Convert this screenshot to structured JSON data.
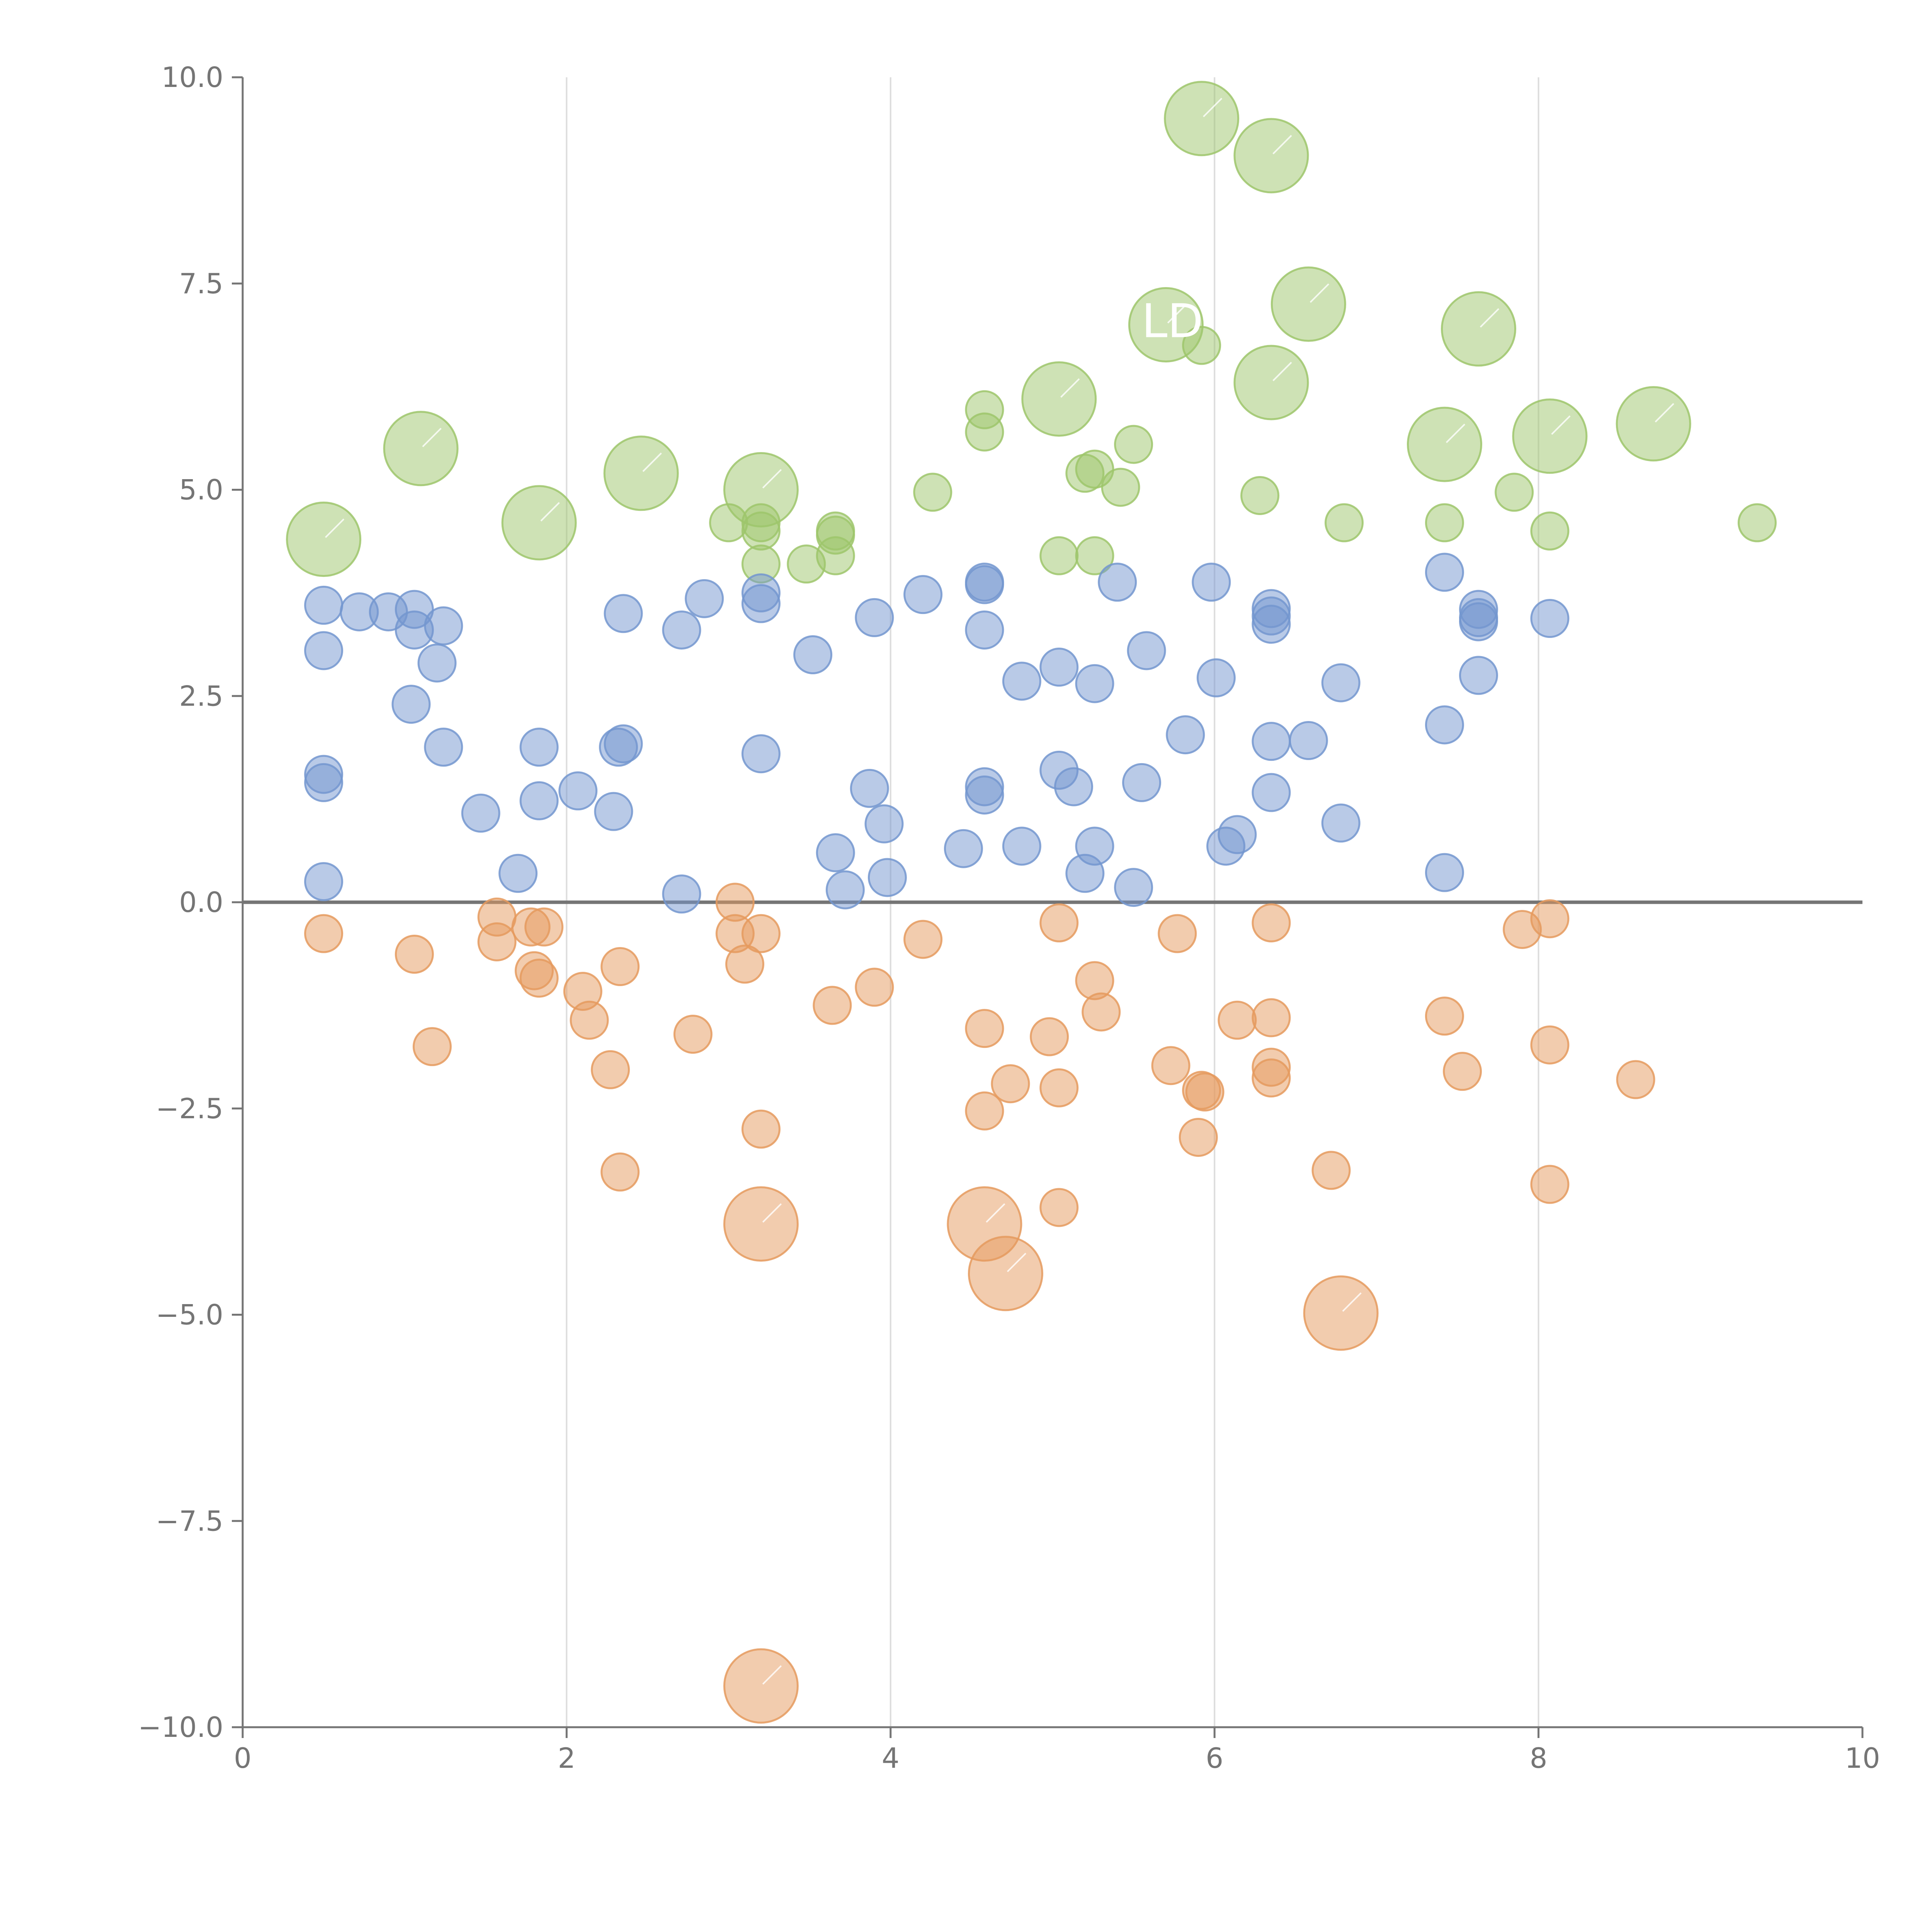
{
  "chart_data": {
    "type": "scatter",
    "title": "",
    "xlabel": "",
    "ylabel": "",
    "xlim": [
      0,
      10
    ],
    "ylim": [
      -10,
      10
    ],
    "x_ticks": [
      0,
      2,
      4,
      6,
      8,
      10
    ],
    "x_tick_labels": [
      "0",
      "2",
      "4",
      "6",
      "8",
      "10"
    ],
    "y_ticks": [
      10,
      7.5,
      5,
      2.5,
      0,
      -2.5,
      -5,
      -7.5,
      -10
    ],
    "y_tick_labels": [
      "10.0",
      "7.5",
      "5.0",
      "2.5",
      "0.0",
      "−2.5",
      "−5.0",
      "−7.5",
      "−10.0"
    ],
    "vertical_gridlines_at": [
      2,
      4,
      6,
      8
    ],
    "zero_line": true,
    "colors": {
      "green": "#9dc56b",
      "blue": "#7396cf",
      "orange": "#e59a5e",
      "axis": "#757575",
      "grid": "#dddddd",
      "zero_line": "#757575",
      "label": "#ffffff"
    },
    "series": [
      {
        "name": "green",
        "color": "#9dc56b",
        "points": [
          {
            "x": 0.5,
            "y": 4.4,
            "size": 3
          },
          {
            "x": 1.1,
            "y": 5.5,
            "size": 3
          },
          {
            "x": 1.83,
            "y": 4.6,
            "size": 3
          },
          {
            "x": 2.46,
            "y": 5.2,
            "size": 3
          },
          {
            "x": 3.2,
            "y": 5.0,
            "size": 3
          },
          {
            "x": 5.04,
            "y": 6.1,
            "size": 3
          },
          {
            "x": 5.7,
            "y": 7.0,
            "size": 3
          },
          {
            "x": 5.92,
            "y": 9.5,
            "size": 3
          },
          {
            "x": 6.35,
            "y": 9.05,
            "size": 3
          },
          {
            "x": 6.58,
            "y": 7.25,
            "size": 3
          },
          {
            "x": 6.35,
            "y": 6.3,
            "size": 3
          },
          {
            "x": 7.63,
            "y": 6.95,
            "size": 3
          },
          {
            "x": 7.42,
            "y": 5.55,
            "size": 3
          },
          {
            "x": 8.07,
            "y": 5.65,
            "size": 3
          },
          {
            "x": 8.71,
            "y": 5.8,
            "size": 3
          },
          {
            "x": 3.0,
            "y": 4.6,
            "size": 1
          },
          {
            "x": 3.2,
            "y": 4.6,
            "size": 1
          },
          {
            "x": 3.2,
            "y": 4.5,
            "size": 1
          },
          {
            "x": 3.2,
            "y": 4.1,
            "size": 1
          },
          {
            "x": 3.48,
            "y": 4.1,
            "size": 1
          },
          {
            "x": 3.66,
            "y": 4.5,
            "size": 1
          },
          {
            "x": 3.66,
            "y": 4.45,
            "size": 1
          },
          {
            "x": 3.66,
            "y": 4.2,
            "size": 1
          },
          {
            "x": 4.26,
            "y": 4.97,
            "size": 1
          },
          {
            "x": 4.58,
            "y": 5.97,
            "size": 1
          },
          {
            "x": 4.58,
            "y": 5.7,
            "size": 1
          },
          {
            "x": 5.04,
            "y": 4.2,
            "size": 1
          },
          {
            "x": 5.2,
            "y": 5.2,
            "size": 1
          },
          {
            "x": 5.26,
            "y": 5.25,
            "size": 1
          },
          {
            "x": 5.26,
            "y": 4.2,
            "size": 1
          },
          {
            "x": 5.42,
            "y": 5.03,
            "size": 1
          },
          {
            "x": 5.5,
            "y": 5.55,
            "size": 1
          },
          {
            "x": 5.92,
            "y": 6.75,
            "size": 1
          },
          {
            "x": 6.28,
            "y": 4.93,
            "size": 1
          },
          {
            "x": 6.8,
            "y": 4.6,
            "size": 1
          },
          {
            "x": 7.42,
            "y": 4.6,
            "size": 1
          },
          {
            "x": 7.85,
            "y": 4.97,
            "size": 1
          },
          {
            "x": 8.07,
            "y": 4.5,
            "size": 1
          },
          {
            "x": 9.35,
            "y": 4.6,
            "size": 1
          }
        ]
      },
      {
        "name": "blue",
        "color": "#7396cf",
        "points": [
          {
            "x": 0.5,
            "y": 3.6,
            "size": 1
          },
          {
            "x": 0.5,
            "y": 3.05,
            "size": 1
          },
          {
            "x": 0.5,
            "y": 1.55,
            "size": 1
          },
          {
            "x": 0.5,
            "y": 1.45,
            "size": 1
          },
          {
            "x": 0.5,
            "y": 0.25,
            "size": 1
          },
          {
            "x": 0.72,
            "y": 3.52,
            "size": 1
          },
          {
            "x": 0.9,
            "y": 3.52,
            "size": 1
          },
          {
            "x": 1.06,
            "y": 3.55,
            "size": 1
          },
          {
            "x": 1.06,
            "y": 3.3,
            "size": 1
          },
          {
            "x": 1.24,
            "y": 3.35,
            "size": 1
          },
          {
            "x": 1.2,
            "y": 2.9,
            "size": 1
          },
          {
            "x": 1.04,
            "y": 2.4,
            "size": 1
          },
          {
            "x": 1.24,
            "y": 1.88,
            "size": 1
          },
          {
            "x": 1.47,
            "y": 1.08,
            "size": 1
          },
          {
            "x": 1.7,
            "y": 0.35,
            "size": 1
          },
          {
            "x": 1.83,
            "y": 1.88,
            "size": 1
          },
          {
            "x": 1.83,
            "y": 1.23,
            "size": 1
          },
          {
            "x": 2.07,
            "y": 1.35,
            "size": 1
          },
          {
            "x": 2.29,
            "y": 1.1,
            "size": 1
          },
          {
            "x": 2.32,
            "y": 1.88,
            "size": 1
          },
          {
            "x": 2.35,
            "y": 1.92,
            "size": 1
          },
          {
            "x": 2.35,
            "y": 3.5,
            "size": 1
          },
          {
            "x": 2.71,
            "y": 3.3,
            "size": 1
          },
          {
            "x": 2.71,
            "y": 0.1,
            "size": 1
          },
          {
            "x": 2.85,
            "y": 3.68,
            "size": 1
          },
          {
            "x": 3.2,
            "y": 3.75,
            "size": 1
          },
          {
            "x": 3.2,
            "y": 3.62,
            "size": 1
          },
          {
            "x": 3.2,
            "y": 1.8,
            "size": 1
          },
          {
            "x": 3.52,
            "y": 3.0,
            "size": 1
          },
          {
            "x": 3.66,
            "y": 0.6,
            "size": 1
          },
          {
            "x": 3.72,
            "y": 0.15,
            "size": 1
          },
          {
            "x": 3.87,
            "y": 1.38,
            "size": 1
          },
          {
            "x": 3.9,
            "y": 3.45,
            "size": 1
          },
          {
            "x": 3.96,
            "y": 0.95,
            "size": 1
          },
          {
            "x": 3.98,
            "y": 0.3,
            "size": 1
          },
          {
            "x": 4.2,
            "y": 3.73,
            "size": 1
          },
          {
            "x": 4.45,
            "y": 0.65,
            "size": 1
          },
          {
            "x": 4.58,
            "y": 3.88,
            "size": 1
          },
          {
            "x": 4.58,
            "y": 3.85,
            "size": 1
          },
          {
            "x": 4.58,
            "y": 3.3,
            "size": 1
          },
          {
            "x": 4.58,
            "y": 1.4,
            "size": 1
          },
          {
            "x": 4.58,
            "y": 1.3,
            "size": 1
          },
          {
            "x": 4.81,
            "y": 2.68,
            "size": 1
          },
          {
            "x": 4.81,
            "y": 0.68,
            "size": 1
          },
          {
            "x": 5.04,
            "y": 2.85,
            "size": 1
          },
          {
            "x": 5.04,
            "y": 1.6,
            "size": 1
          },
          {
            "x": 5.13,
            "y": 1.4,
            "size": 1
          },
          {
            "x": 5.2,
            "y": 0.35,
            "size": 1
          },
          {
            "x": 5.26,
            "y": 2.65,
            "size": 1
          },
          {
            "x": 5.26,
            "y": 0.68,
            "size": 1
          },
          {
            "x": 5.4,
            "y": 3.88,
            "size": 1
          },
          {
            "x": 5.5,
            "y": 0.18,
            "size": 1
          },
          {
            "x": 5.55,
            "y": 1.45,
            "size": 1
          },
          {
            "x": 5.58,
            "y": 3.05,
            "size": 1
          },
          {
            "x": 5.82,
            "y": 2.03,
            "size": 1
          },
          {
            "x": 5.98,
            "y": 3.88,
            "size": 1
          },
          {
            "x": 6.01,
            "y": 2.72,
            "size": 1
          },
          {
            "x": 6.07,
            "y": 0.68,
            "size": 1
          },
          {
            "x": 6.14,
            "y": 0.82,
            "size": 1
          },
          {
            "x": 6.35,
            "y": 3.56,
            "size": 1
          },
          {
            "x": 6.35,
            "y": 3.47,
            "size": 1
          },
          {
            "x": 6.35,
            "y": 3.37,
            "size": 1
          },
          {
            "x": 6.35,
            "y": 1.95,
            "size": 1
          },
          {
            "x": 6.35,
            "y": 1.33,
            "size": 1
          },
          {
            "x": 6.58,
            "y": 1.96,
            "size": 1
          },
          {
            "x": 6.78,
            "y": 2.66,
            "size": 1
          },
          {
            "x": 6.78,
            "y": 0.96,
            "size": 1
          },
          {
            "x": 7.42,
            "y": 4.0,
            "size": 1
          },
          {
            "x": 7.42,
            "y": 2.15,
            "size": 1
          },
          {
            "x": 7.42,
            "y": 0.36,
            "size": 1
          },
          {
            "x": 7.63,
            "y": 3.55,
            "size": 1
          },
          {
            "x": 7.63,
            "y": 3.45,
            "size": 1
          },
          {
            "x": 7.63,
            "y": 3.4,
            "size": 1
          },
          {
            "x": 7.63,
            "y": 2.75,
            "size": 1
          },
          {
            "x": 8.07,
            "y": 3.44,
            "size": 1
          }
        ]
      },
      {
        "name": "orange",
        "color": "#e59a5e",
        "points": [
          {
            "x": 0.5,
            "y": -0.38,
            "size": 1
          },
          {
            "x": 1.06,
            "y": -0.63,
            "size": 1
          },
          {
            "x": 1.17,
            "y": -1.75,
            "size": 1
          },
          {
            "x": 1.57,
            "y": -0.18,
            "size": 1
          },
          {
            "x": 1.57,
            "y": -0.48,
            "size": 1
          },
          {
            "x": 1.78,
            "y": -0.3,
            "size": 1
          },
          {
            "x": 1.8,
            "y": -0.83,
            "size": 1
          },
          {
            "x": 1.83,
            "y": -0.92,
            "size": 1
          },
          {
            "x": 1.86,
            "y": -0.3,
            "size": 1
          },
          {
            "x": 2.1,
            "y": -1.08,
            "size": 1
          },
          {
            "x": 2.14,
            "y": -1.43,
            "size": 1
          },
          {
            "x": 2.27,
            "y": -2.03,
            "size": 1
          },
          {
            "x": 2.33,
            "y": -0.78,
            "size": 1
          },
          {
            "x": 2.33,
            "y": -3.27,
            "size": 1
          },
          {
            "x": 2.78,
            "y": -1.6,
            "size": 1
          },
          {
            "x": 3.04,
            "y": 0.0,
            "size": 1
          },
          {
            "x": 3.04,
            "y": -0.38,
            "size": 1
          },
          {
            "x": 3.1,
            "y": -0.75,
            "size": 1
          },
          {
            "x": 3.2,
            "y": -0.38,
            "size": 1
          },
          {
            "x": 3.2,
            "y": -2.75,
            "size": 1
          },
          {
            "x": 3.64,
            "y": -1.25,
            "size": 1
          },
          {
            "x": 3.9,
            "y": -1.03,
            "size": 1
          },
          {
            "x": 4.2,
            "y": -0.45,
            "size": 1
          },
          {
            "x": 4.58,
            "y": -1.53,
            "size": 1
          },
          {
            "x": 4.58,
            "y": -2.53,
            "size": 1
          },
          {
            "x": 4.74,
            "y": -2.2,
            "size": 1
          },
          {
            "x": 4.98,
            "y": -1.63,
            "size": 1
          },
          {
            "x": 5.04,
            "y": -0.25,
            "size": 1
          },
          {
            "x": 5.04,
            "y": -2.25,
            "size": 1
          },
          {
            "x": 5.04,
            "y": -3.7,
            "size": 1
          },
          {
            "x": 5.26,
            "y": -0.95,
            "size": 1
          },
          {
            "x": 5.3,
            "y": -1.33,
            "size": 1
          },
          {
            "x": 5.73,
            "y": -1.98,
            "size": 1
          },
          {
            "x": 5.77,
            "y": -0.38,
            "size": 1
          },
          {
            "x": 5.9,
            "y": -2.85,
            "size": 1
          },
          {
            "x": 5.92,
            "y": -2.28,
            "size": 1
          },
          {
            "x": 5.94,
            "y": -2.3,
            "size": 1
          },
          {
            "x": 6.14,
            "y": -1.43,
            "size": 1
          },
          {
            "x": 6.35,
            "y": -0.25,
            "size": 1
          },
          {
            "x": 6.35,
            "y": -1.4,
            "size": 1
          },
          {
            "x": 6.35,
            "y": -2.0,
            "size": 1
          },
          {
            "x": 6.35,
            "y": -2.13,
            "size": 1
          },
          {
            "x": 6.72,
            "y": -3.25,
            "size": 1
          },
          {
            "x": 7.42,
            "y": -1.38,
            "size": 1
          },
          {
            "x": 7.53,
            "y": -2.05,
            "size": 1
          },
          {
            "x": 7.9,
            "y": -0.33,
            "size": 1
          },
          {
            "x": 8.07,
            "y": -0.2,
            "size": 1
          },
          {
            "x": 8.07,
            "y": -1.73,
            "size": 1
          },
          {
            "x": 8.07,
            "y": -3.42,
            "size": 1
          },
          {
            "x": 8.6,
            "y": -2.15,
            "size": 1
          },
          {
            "x": 3.2,
            "y": -3.9,
            "size": 3
          },
          {
            "x": 4.58,
            "y": -3.9,
            "size": 3
          },
          {
            "x": 4.71,
            "y": -4.5,
            "size": 3
          },
          {
            "x": 6.78,
            "y": -4.98,
            "size": 3
          },
          {
            "x": 3.2,
            "y": -9.5,
            "size": 3
          }
        ]
      }
    ],
    "annotations": [
      {
        "text": "LD",
        "x": 5.55,
        "y": 6.85
      }
    ]
  }
}
